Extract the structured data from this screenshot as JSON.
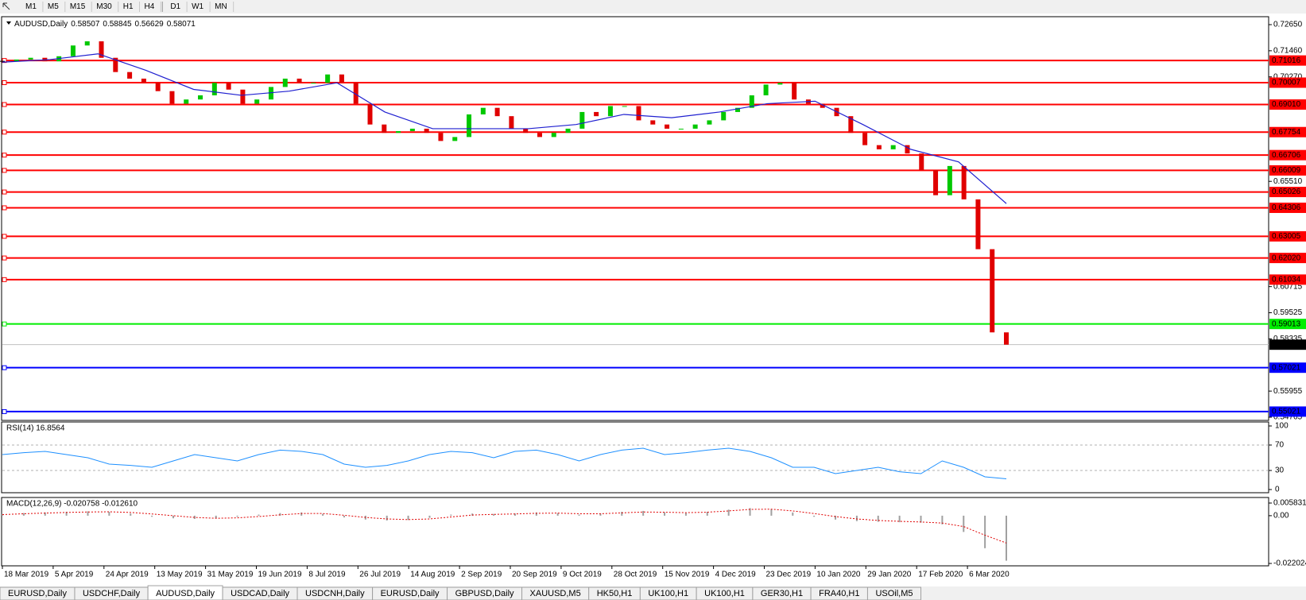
{
  "toolbar": {
    "timeframes": [
      "M1",
      "M5",
      "M15",
      "M30",
      "H1",
      "H4",
      "D1",
      "W1",
      "MN"
    ]
  },
  "chart_data": {
    "type": "candlestick",
    "title": "AUDUSD,Daily",
    "quote": [
      "0.58507",
      "0.58845",
      "0.56629",
      "0.58071"
    ],
    "closes": [
      0.7098,
      0.7106,
      0.7114,
      0.7098,
      0.7121,
      0.717,
      0.7189,
      0.7114,
      0.7049,
      0.7019,
      0.7,
      0.6962,
      0.6905,
      0.6924,
      0.6943,
      0.7,
      0.6969,
      0.6905,
      0.6924,
      0.6981,
      0.7019,
      0.7,
      0.7,
      0.7038,
      0.7,
      0.6905,
      0.681,
      0.6772,
      0.678,
      0.6791,
      0.6772,
      0.6735,
      0.6753,
      0.6856,
      0.6886,
      0.6848,
      0.6791,
      0.6772,
      0.6753,
      0.6772,
      0.6791,
      0.6867,
      0.6848,
      0.6894,
      0.6894,
      0.6829,
      0.681,
      0.6791,
      0.6791,
      0.681,
      0.6829,
      0.6867,
      0.6886,
      0.6943,
      0.6992,
      0.7,
      0.6924,
      0.6905,
      0.6886,
      0.6848,
      0.6772,
      0.6716,
      0.6697,
      0.6716,
      0.6678,
      0.6602,
      0.6488,
      0.6621,
      0.6469,
      0.6242,
      0.5863,
      0.5807
    ],
    "up_color": "#00c800",
    "down_color": "#e00000",
    "moving_average": {
      "color": "#2020d0",
      "values": [
        0.7094,
        0.7106,
        0.7132,
        0.7057,
        0.697,
        0.6943,
        0.6962,
        0.7,
        0.6867,
        0.6791,
        0.6791,
        0.6791,
        0.681,
        0.6856,
        0.6841,
        0.6867,
        0.6905,
        0.6916,
        0.681,
        0.6697,
        0.664,
        0.645
      ]
    },
    "ylim": [
      0.54765,
      0.7265
    ],
    "yticks": [
      {
        "value": 0.7265,
        "label": "0.72650"
      },
      {
        "value": 0.7146,
        "label": "0.71460"
      },
      {
        "value": 0.7027,
        "label": "0.70270"
      },
      {
        "value": 0.6551,
        "label": "0.65510"
      },
      {
        "value": 0.60715,
        "label": "0.60715"
      },
      {
        "value": 0.59525,
        "label": "0.59525"
      },
      {
        "value": 0.58335,
        "label": "0.58335"
      },
      {
        "value": 0.55955,
        "label": "0.55955"
      },
      {
        "value": 0.54765,
        "label": "0.54765"
      }
    ],
    "levels": [
      {
        "value": 0.71016,
        "label": "0.71016",
        "color": "#ff0000"
      },
      {
        "value": 0.70007,
        "label": "0.70007",
        "color": "#ff0000"
      },
      {
        "value": 0.6901,
        "label": "0.69010",
        "color": "#ff0000"
      },
      {
        "value": 0.67754,
        "label": "0.67754",
        "color": "#ff0000"
      },
      {
        "value": 0.66706,
        "label": "0.66706",
        "color": "#ff0000"
      },
      {
        "value": 0.66009,
        "label": "0.66009",
        "color": "#ff0000"
      },
      {
        "value": 0.65026,
        "label": "0.65026",
        "color": "#ff0000"
      },
      {
        "value": 0.64306,
        "label": "0.64306",
        "color": "#ff0000"
      },
      {
        "value": 0.63005,
        "label": "0.63005",
        "color": "#ff0000"
      },
      {
        "value": 0.6202,
        "label": "0.62020",
        "color": "#ff0000"
      },
      {
        "value": 0.61034,
        "label": "0.61034",
        "color": "#ff0000"
      },
      {
        "value": 0.59013,
        "label": "0.59013",
        "color": "#00ee00"
      },
      {
        "value": 0.57021,
        "label": "0.57021",
        "color": "#0000ff"
      },
      {
        "value": 0.55021,
        "label": "0.55021",
        "color": "#0000ff"
      }
    ],
    "current_price": {
      "value": 0.58071,
      "label": "0.58071"
    },
    "dates": [
      "18 Mar 2019",
      "5 Apr 2019",
      "24 Apr 2019",
      "13 May 2019",
      "31 May 2019",
      "19 Jun 2019",
      "8 Jul 2019",
      "26 Jul 2019",
      "14 Aug 2019",
      "2 Sep 2019",
      "20 Sep 2019",
      "9 Oct 2019",
      "28 Oct 2019",
      "15 Nov 2019",
      "4 Dec 2019",
      "23 Dec 2019",
      "10 Jan 2020",
      "29 Jan 2020",
      "17 Feb 2020",
      "6 Mar 2020"
    ]
  },
  "rsi": {
    "title": "RSI(14) 16.8564",
    "color": "#1e90ff",
    "values": [
      55,
      58,
      60,
      55,
      50,
      40,
      38,
      35,
      45,
      55,
      50,
      45,
      55,
      62,
      60,
      55,
      40,
      35,
      38,
      45,
      55,
      60,
      58,
      50,
      60,
      62,
      55,
      45,
      55,
      62,
      65,
      55,
      58,
      62,
      65,
      60,
      50,
      35,
      35,
      25,
      30,
      35,
      28,
      25,
      45,
      35,
      20,
      16.8564
    ],
    "ylim": [
      0,
      100
    ],
    "yticks": [
      100,
      70,
      30,
      0
    ],
    "levels": [
      70,
      30
    ]
  },
  "macd": {
    "title": "MACD(12,26,9) -0.020758 -0.012610",
    "histogram": [
      0.0008,
      0.0012,
      0.0015,
      0.0018,
      0.002,
      0.0018,
      0.001,
      -0.0005,
      -0.0012,
      -0.0015,
      -0.0012,
      -0.0005,
      0.0005,
      0.0012,
      0.0015,
      0.0008,
      -0.0008,
      -0.0018,
      -0.0022,
      -0.002,
      -0.001,
      0.0005,
      0.001,
      0.0008,
      0.001,
      0.0015,
      0.0012,
      0.0005,
      0.001,
      0.0018,
      0.0022,
      0.0015,
      0.0012,
      0.0018,
      0.0028,
      0.0035,
      0.003,
      0.0015,
      -0.0005,
      -0.0018,
      -0.0025,
      -0.0028,
      -0.003,
      -0.0032,
      -0.004,
      -0.0075,
      -0.015,
      -0.020758
    ],
    "signal": [
      0.0005,
      0.0009,
      0.0012,
      0.0015,
      0.0017,
      0.0018,
      0.0015,
      0.0008,
      0,
      -0.0008,
      -0.0012,
      -0.001,
      -0.0004,
      0.0004,
      0.001,
      0.001,
      0.0002,
      -0.0008,
      -0.0015,
      -0.0018,
      -0.0015,
      -0.0006,
      0.0003,
      0.0006,
      0.0008,
      0.0011,
      0.0012,
      0.0009,
      0.0009,
      0.0013,
      0.0017,
      0.0016,
      0.0014,
      0.0016,
      0.0022,
      0.0029,
      0.003,
      0.0022,
      0.001,
      -0.0004,
      -0.0015,
      -0.0022,
      -0.0026,
      -0.0029,
      -0.0034,
      -0.005,
      -0.009,
      -0.01261
    ],
    "histogram_color": "#a0a0a0",
    "signal_color": "#e00000",
    "ylim": [
      -0.022024,
      0.005831
    ],
    "yticks": [
      0.005831,
      {
        "value": 0,
        "label": "0.00"
      },
      -0.022024
    ]
  },
  "tabs": {
    "items": [
      "EURUSD,Daily",
      "USDCHF,Daily",
      "AUDUSD,Daily",
      "USDCAD,Daily",
      "USDCNH,Daily",
      "EURUSD,Daily",
      "GBPUSD,Daily",
      "XAUUSD,M5",
      "HK50,H1",
      "UK100,H1",
      "UK100,H1",
      "GER30,H1",
      "FRA40,H1",
      "USOil,M5"
    ],
    "active": 2
  }
}
